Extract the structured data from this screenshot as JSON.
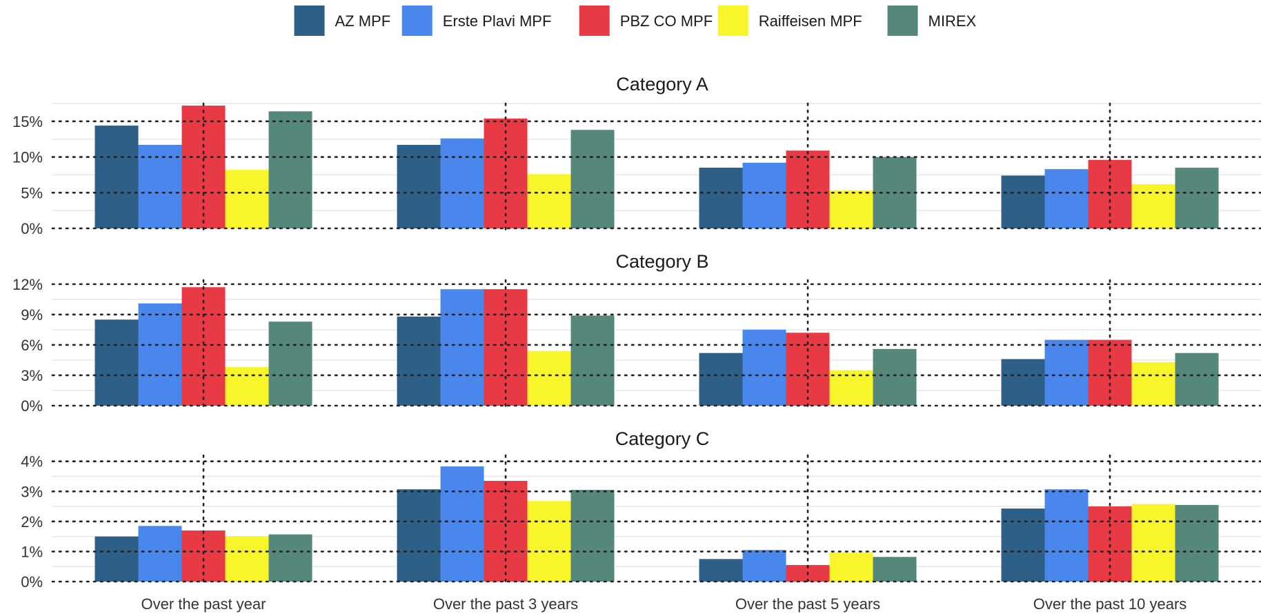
{
  "chart_data": {
    "type": "bar",
    "categories": [
      "Over the past year",
      "Over the past 3 years",
      "Over the past 5 years",
      "Over the past 10 years"
    ],
    "legend": {
      "placement": "top",
      "series": [
        {
          "name": "AZ MPF",
          "color": "#2e5f87"
        },
        {
          "name": "Erste Plavi MPF",
          "color": "#4a87ec"
        },
        {
          "name": "PBZ CO MPF",
          "color": "#e83a45"
        },
        {
          "name": "Raiffeisen MPF",
          "color": "#f8f52a"
        },
        {
          "name": "MIREX",
          "color": "#55877b"
        }
      ]
    },
    "grid": true,
    "panels": [
      {
        "title": "Category A",
        "ylim": [
          0,
          17.5
        ],
        "yticks": [
          0,
          5,
          10,
          15
        ],
        "ytick_labels": [
          "0%",
          "5%",
          "10%",
          "15%"
        ],
        "series": [
          {
            "name": "AZ MPF",
            "values": [
              14.4,
              11.7,
              8.5,
              7.4
            ]
          },
          {
            "name": "Erste Plavi MPF",
            "values": [
              11.7,
              12.6,
              9.2,
              8.3
            ]
          },
          {
            "name": "PBZ CO MPF",
            "values": [
              17.2,
              15.4,
              10.9,
              9.6
            ]
          },
          {
            "name": "Raiffeisen MPF",
            "values": [
              8.2,
              7.6,
              5.3,
              6.2
            ]
          },
          {
            "name": "MIREX",
            "values": [
              16.4,
              13.8,
              10.0,
              8.5
            ]
          }
        ]
      },
      {
        "title": "Category B",
        "ylim": [
          0,
          12.4
        ],
        "yticks": [
          0,
          3,
          6,
          9,
          12
        ],
        "ytick_labels": [
          "0%",
          "3%",
          "6%",
          "9%",
          "12%"
        ],
        "series": [
          {
            "name": "AZ MPF",
            "values": [
              8.5,
              8.8,
              5.2,
              4.6
            ]
          },
          {
            "name": "Erste Plavi MPF",
            "values": [
              10.1,
              11.5,
              7.5,
              6.5
            ]
          },
          {
            "name": "PBZ CO MPF",
            "values": [
              11.7,
              11.5,
              7.2,
              6.5
            ]
          },
          {
            "name": "Raiffeisen MPF",
            "values": [
              3.8,
              5.4,
              3.5,
              4.3
            ]
          },
          {
            "name": "MIREX",
            "values": [
              8.3,
              8.9,
              5.6,
              5.2
            ]
          }
        ]
      },
      {
        "title": "Category C",
        "ylim": [
          0,
          4.2
        ],
        "yticks": [
          0,
          1,
          2,
          3,
          4
        ],
        "ytick_labels": [
          "0%",
          "1%",
          "2%",
          "3%",
          "4%"
        ],
        "series": [
          {
            "name": "AZ MPF",
            "values": [
              1.5,
              3.07,
              0.75,
              2.43
            ]
          },
          {
            "name": "Erste Plavi MPF",
            "values": [
              1.85,
              3.83,
              1.05,
              3.07
            ]
          },
          {
            "name": "PBZ CO MPF",
            "values": [
              1.7,
              3.35,
              0.55,
              2.5
            ]
          },
          {
            "name": "Raiffeisen MPF",
            "values": [
              1.5,
              2.68,
              0.97,
              2.58
            ]
          },
          {
            "name": "MIREX",
            "values": [
              1.57,
              3.05,
              0.82,
              2.55
            ]
          }
        ]
      }
    ]
  }
}
